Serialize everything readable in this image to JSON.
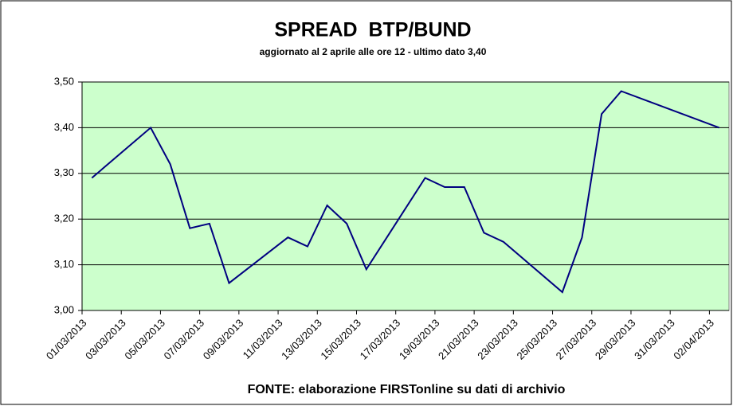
{
  "chart_data": {
    "type": "line",
    "title": "SPREAD  BTP/BUND",
    "subtitle": "aggiornato al 2 aprile alle ore 12 - ultimo dato 3,40",
    "source": "FONTE: elaborazione FIRSTonline su dati di archivio",
    "xlim": [
      "01/03/2013",
      "02/04/2013"
    ],
    "xticks": [
      "01/03/2013",
      "03/03/2013",
      "05/03/2013",
      "07/03/2013",
      "09/03/2013",
      "11/03/2013",
      "13/03/2013",
      "15/03/2013",
      "17/03/2013",
      "19/03/2013",
      "21/03/2013",
      "23/03/2013",
      "25/03/2013",
      "27/03/2013",
      "29/03/2013",
      "31/03/2013",
      "02/04/2013"
    ],
    "x": [
      "01/03/2013",
      "04/03/2013",
      "05/03/2013",
      "06/03/2013",
      "07/03/2013",
      "08/03/2013",
      "11/03/2013",
      "12/03/2013",
      "13/03/2013",
      "14/03/2013",
      "15/03/2013",
      "18/03/2013",
      "19/03/2013",
      "20/03/2013",
      "21/03/2013",
      "22/03/2013",
      "25/03/2013",
      "26/03/2013",
      "27/03/2013",
      "28/03/2013",
      "02/04/2013"
    ],
    "series": [
      {
        "name": "Spread",
        "color": "#000080",
        "values": [
          3.29,
          3.4,
          3.32,
          3.18,
          3.19,
          3.06,
          3.16,
          3.14,
          3.23,
          3.19,
          3.09,
          3.29,
          3.27,
          3.27,
          3.17,
          3.15,
          3.04,
          3.16,
          3.43,
          3.48,
          3.4
        ]
      }
    ],
    "ylim": [
      3.0,
      3.5
    ],
    "yticks": [
      {
        "value": 3.0,
        "label": "3,00"
      },
      {
        "value": 3.1,
        "label": "3,10"
      },
      {
        "value": 3.2,
        "label": "3,20"
      },
      {
        "value": 3.3,
        "label": "3,30"
      },
      {
        "value": 3.4,
        "label": "3,40"
      },
      {
        "value": 3.5,
        "label": "3,50"
      }
    ],
    "grid": true,
    "plot_background": "#ccffcc"
  }
}
